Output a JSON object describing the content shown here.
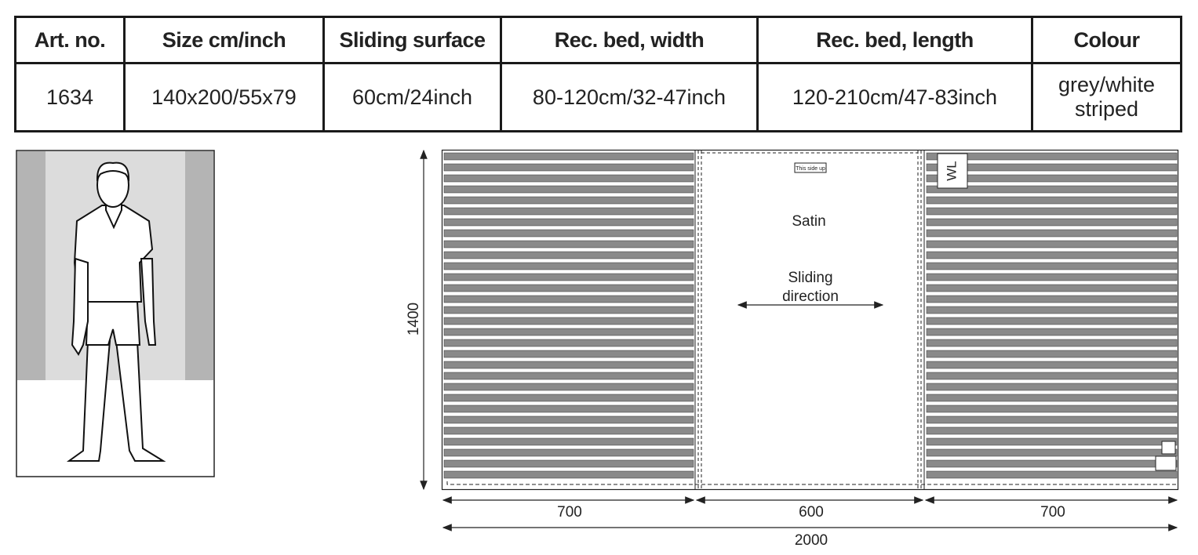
{
  "table": {
    "headers": [
      "Art. no.",
      "Size cm/inch",
      "Sliding surface",
      "Rec. bed, width",
      "Rec. bed, length",
      "Colour"
    ],
    "rows": [
      [
        "1634",
        "140x200/55x79",
        "60cm/24inch",
        "80-120cm/32-47inch",
        "120-210cm/47-83inch",
        "grey/white striped"
      ]
    ]
  },
  "figure": {
    "label_top": "This side up",
    "label_corner": "WL",
    "material": "Satin",
    "sliding_direction": [
      "Sliding",
      "direction"
    ],
    "dimensions": {
      "height": 1400,
      "left": 700,
      "middle": 600,
      "right": 700,
      "total": 2000
    }
  }
}
